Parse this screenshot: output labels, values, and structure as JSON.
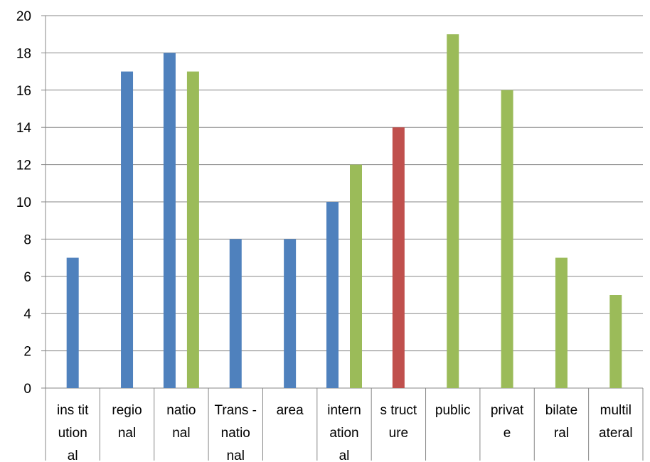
{
  "chart_data": {
    "type": "bar",
    "categories": [
      [
        "ins tit",
        "ution",
        "al"
      ],
      [
        "regio",
        "nal"
      ],
      [
        "natio",
        "nal"
      ],
      [
        "Trans -",
        "natio",
        "nal"
      ],
      [
        "area"
      ],
      [
        "intern",
        "ation",
        "al"
      ],
      [
        "s truct",
        "ure"
      ],
      [
        "public"
      ],
      [
        "privat",
        "e"
      ],
      [
        "bilate",
        "ral"
      ],
      [
        "multil",
        "ateral"
      ]
    ],
    "series": [
      {
        "color": "#4F81BD",
        "values": [
          7,
          17,
          18,
          8,
          8,
          10,
          null,
          null,
          null,
          null,
          null
        ]
      },
      {
        "color": "#9BBB59",
        "values": [
          null,
          null,
          17,
          null,
          null,
          12,
          null,
          19,
          16,
          7,
          5
        ]
      },
      {
        "color": "#C0504D",
        "values": [
          null,
          null,
          null,
          null,
          null,
          null,
          14,
          null,
          null,
          null,
          null
        ]
      }
    ],
    "ylim": [
      0,
      20
    ],
    "yticks": [
      0,
      2,
      4,
      6,
      8,
      10,
      12,
      14,
      16,
      18,
      20
    ],
    "grid": true,
    "legend": "none"
  }
}
